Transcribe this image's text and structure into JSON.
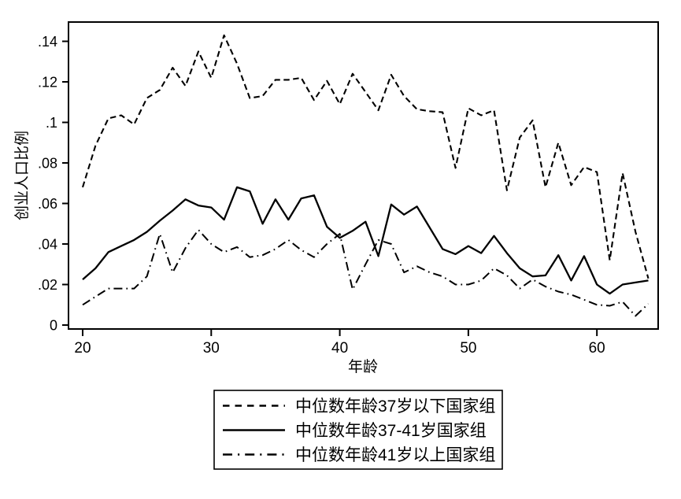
{
  "figure": {
    "background_color": "#ffffff",
    "line_color": "#000000"
  },
  "chart_data": {
    "type": "line",
    "title": "",
    "xlabel": "年龄",
    "ylabel": "创业人口比例",
    "xlim": [
      20,
      64
    ],
    "ylim": [
      0,
      0.14
    ],
    "grid": false,
    "legend_position": "bottom-center",
    "x_tick_values": [
      20,
      30,
      40,
      50,
      60
    ],
    "x_tick_labels": [
      "20",
      "30",
      "40",
      "50",
      "60"
    ],
    "y_tick_values": [
      0,
      0.02,
      0.04,
      0.06,
      0.08,
      0.1,
      0.12,
      0.14
    ],
    "y_tick_labels": [
      "0",
      ".02",
      ".04",
      ".06",
      ".08",
      ".1",
      ".12",
      ".14"
    ],
    "x": [
      20,
      21,
      22,
      23,
      24,
      25,
      26,
      27,
      28,
      29,
      30,
      31,
      32,
      33,
      34,
      35,
      36,
      37,
      38,
      39,
      40,
      41,
      42,
      43,
      44,
      45,
      46,
      47,
      48,
      49,
      50,
      51,
      52,
      53,
      54,
      55,
      56,
      57,
      58,
      59,
      60,
      61,
      62,
      63,
      64
    ],
    "series": [
      {
        "name": "中位数年龄37岁以下国家组",
        "style": "dashed",
        "values": [
          0.068,
          0.0885,
          0.102,
          0.1035,
          0.099,
          0.112,
          0.116,
          0.127,
          0.118,
          0.135,
          0.122,
          0.143,
          0.129,
          0.112,
          0.113,
          0.121,
          0.121,
          0.122,
          0.111,
          0.1205,
          0.109,
          0.124,
          0.115,
          0.106,
          0.1235,
          0.113,
          0.1065,
          0.1055,
          0.105,
          0.0775,
          0.107,
          0.1035,
          0.106,
          0.0665,
          0.0925,
          0.101,
          0.068,
          0.09,
          0.069,
          0.078,
          0.0755,
          0.032,
          0.075,
          0.046,
          0.023
        ]
      },
      {
        "name": "中位数年龄37-41岁国家组",
        "style": "solid",
        "values": [
          0.0225,
          0.028,
          0.036,
          0.039,
          0.042,
          0.046,
          0.0515,
          0.0565,
          0.062,
          0.059,
          0.058,
          0.052,
          0.068,
          0.066,
          0.05,
          0.062,
          0.052,
          0.0625,
          0.064,
          0.0485,
          0.043,
          0.0465,
          0.051,
          0.034,
          0.0595,
          0.0545,
          0.0585,
          0.048,
          0.0375,
          0.035,
          0.039,
          0.0355,
          0.044,
          0.0355,
          0.028,
          0.024,
          0.0245,
          0.0345,
          0.022,
          0.034,
          0.02,
          0.0155,
          0.02,
          0.021,
          0.022
        ]
      },
      {
        "name": "中位数年龄41岁以上国家组",
        "style": "dash-dot",
        "values": [
          0.01,
          0.014,
          0.018,
          0.018,
          0.018,
          0.024,
          0.045,
          0.026,
          0.038,
          0.047,
          0.04,
          0.036,
          0.0385,
          0.0335,
          0.0345,
          0.0375,
          0.042,
          0.037,
          0.0335,
          0.04,
          0.045,
          0.0175,
          0.03,
          0.042,
          0.04,
          0.026,
          0.029,
          0.026,
          0.024,
          0.02,
          0.02,
          0.022,
          0.028,
          0.0245,
          0.018,
          0.0225,
          0.019,
          0.0165,
          0.015,
          0.0125,
          0.01,
          0.0095,
          0.0115,
          0.0045,
          0.0105
        ]
      }
    ]
  }
}
